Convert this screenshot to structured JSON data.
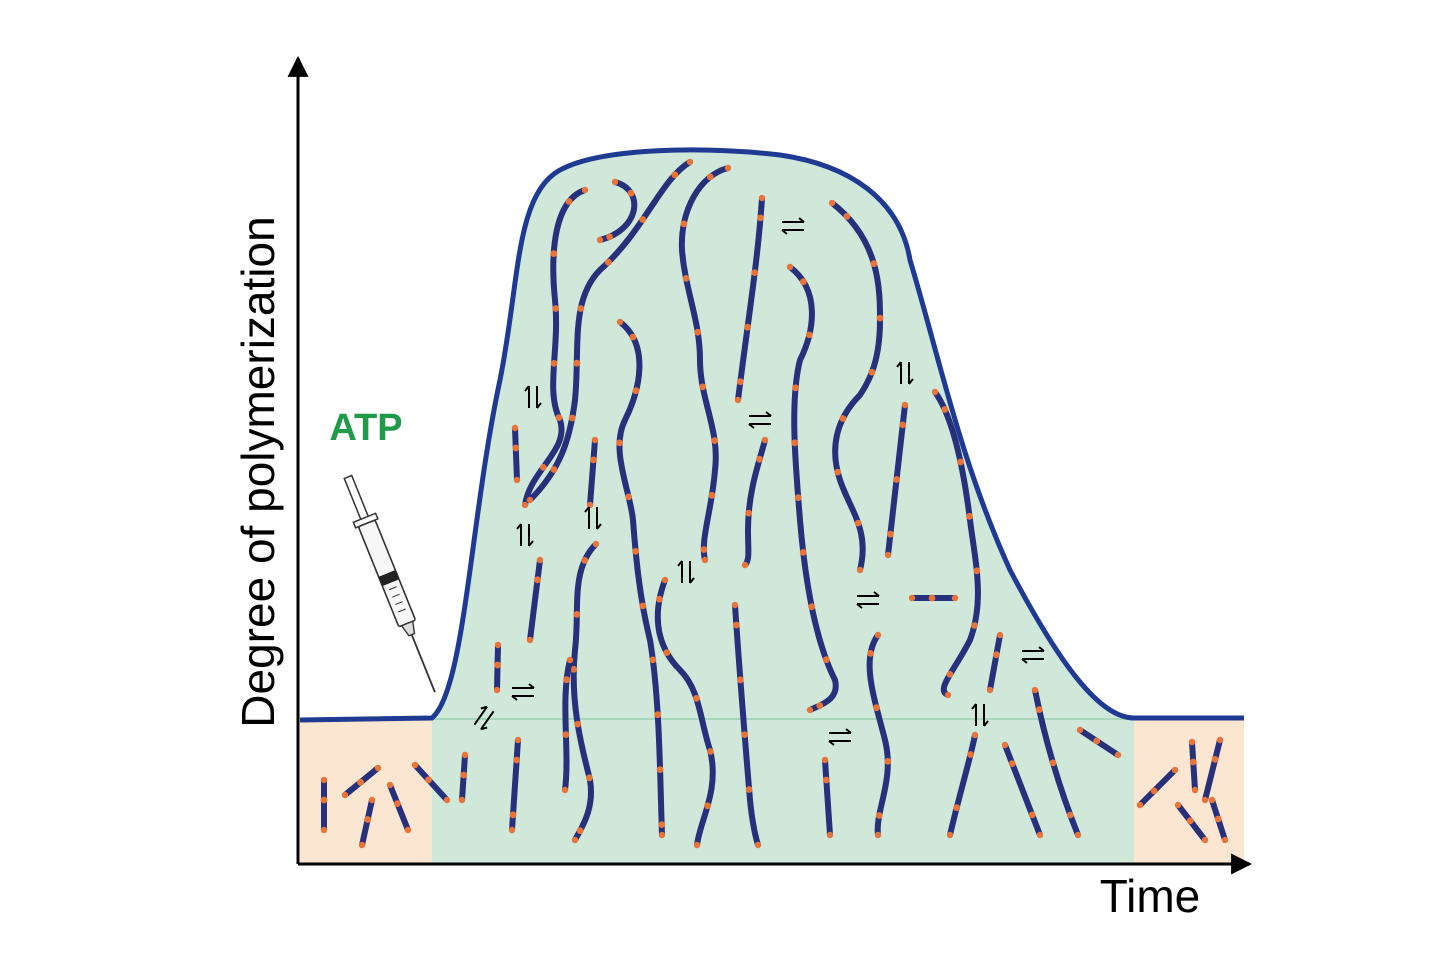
{
  "labels": {
    "y_axis": "Degree of polymerization",
    "x_axis": "Time",
    "reagent": "ATP"
  },
  "colors": {
    "axis": "#000000",
    "curve": "#1f3a93",
    "polymerized_region": "#cfe8da",
    "monomer_region": "#fbe6d2",
    "filament": "#27307a",
    "filament_joint": "#e8743b",
    "atp_label": "#1f9a47"
  },
  "icons": {
    "injector": "syringe-icon",
    "equilibrium": "equilibrium-arrows-icon"
  }
}
